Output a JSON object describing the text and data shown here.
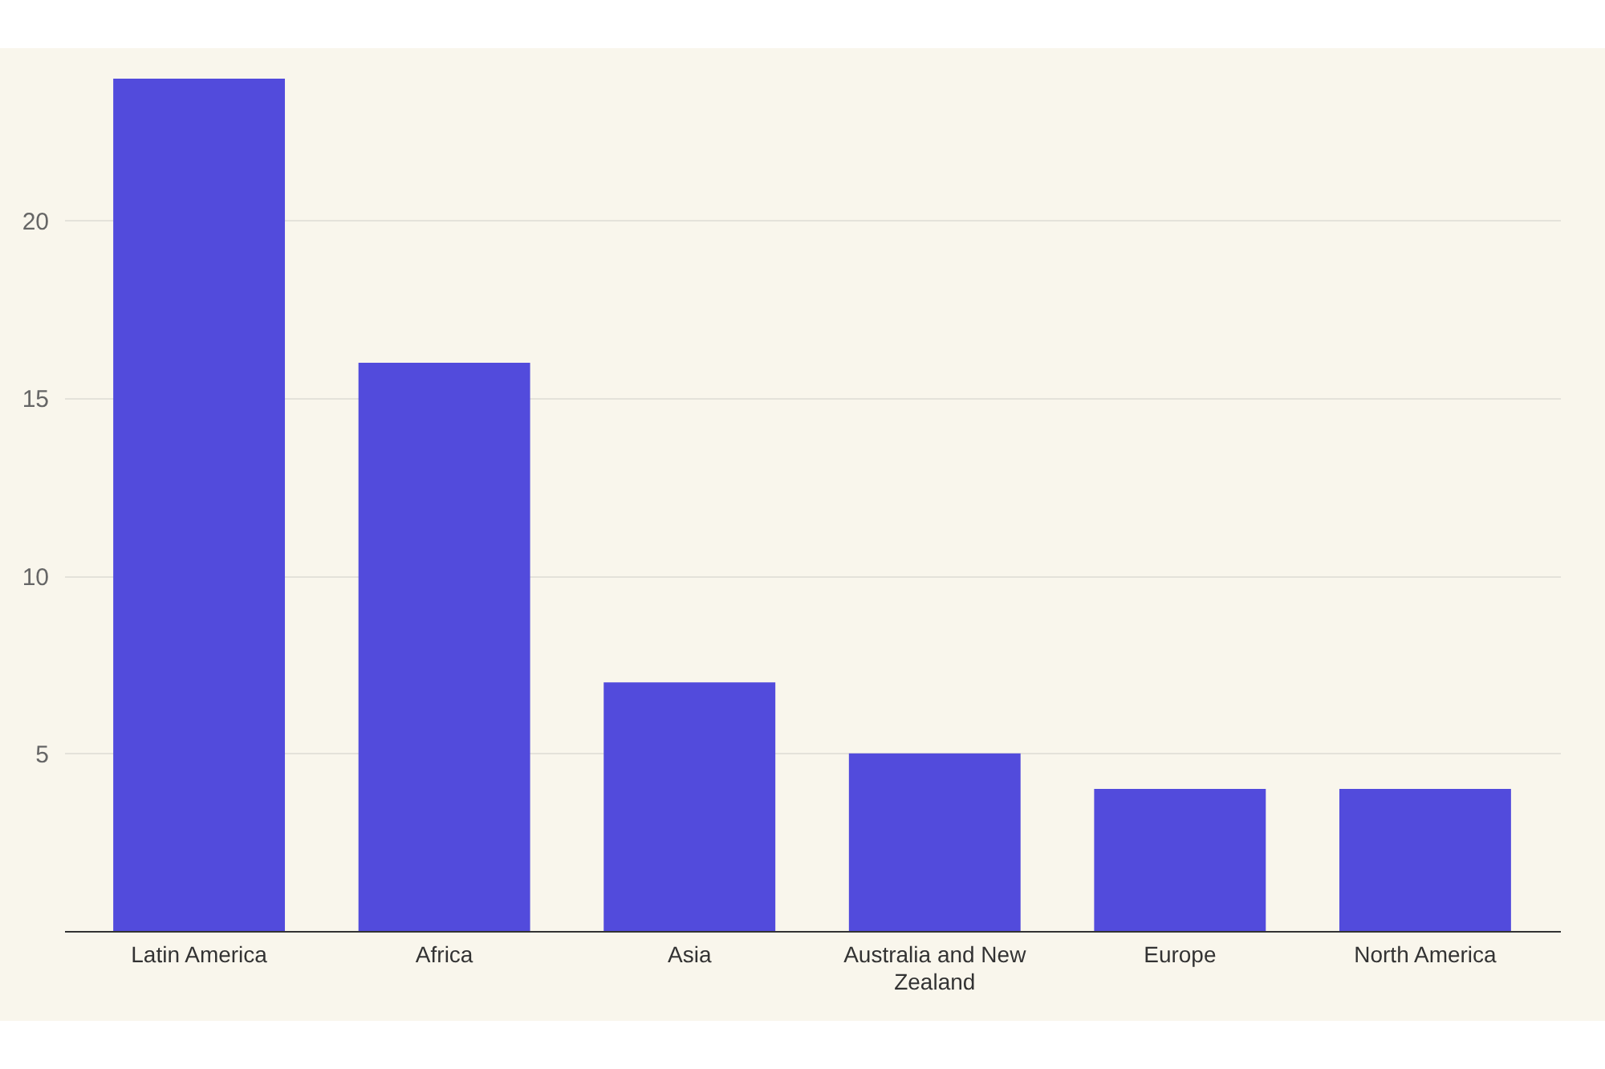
{
  "chart_data": {
    "type": "bar",
    "categories": [
      "Latin America",
      "Africa",
      "Asia",
      "Australia and New Zealand",
      "Europe",
      "North America"
    ],
    "values": [
      24,
      16,
      7,
      5,
      4,
      4
    ],
    "color": "#524bdc",
    "ylim": [
      0,
      24
    ],
    "yticks": [
      5,
      10,
      15,
      20
    ],
    "grid": "y"
  }
}
